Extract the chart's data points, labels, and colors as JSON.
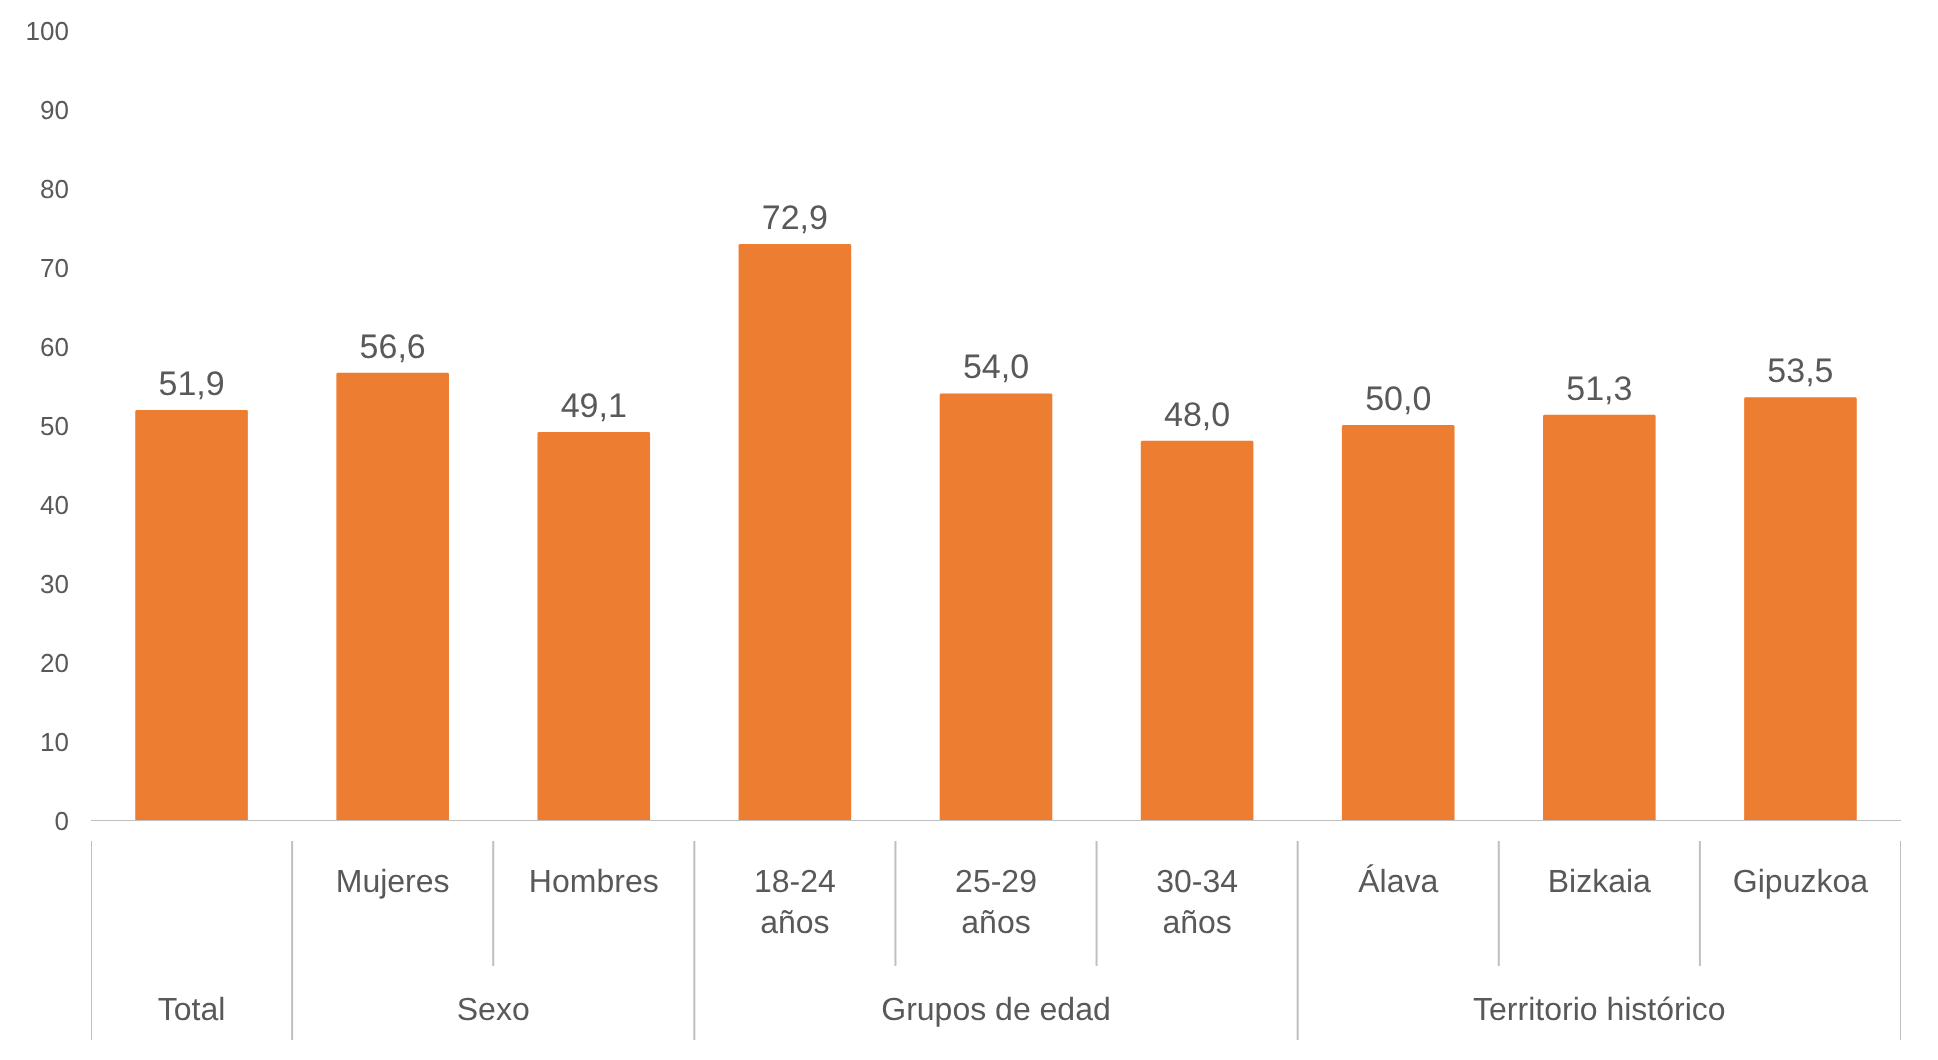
{
  "chart_data": {
    "type": "bar",
    "categories": [
      null,
      "Mujeres",
      "Hombres",
      "18-24 años",
      "25-29 años",
      "30-34 años",
      "Álava",
      "Bizkaia",
      "Gipuzkoa"
    ],
    "values": [
      51.9,
      56.6,
      49.1,
      72.9,
      54.0,
      48.0,
      50.0,
      51.3,
      53.5
    ],
    "value_labels": [
      "51,9",
      "56,6",
      "49,1",
      "72,9",
      "54,0",
      "48,0",
      "50,0",
      "51,3",
      "53,5"
    ],
    "color": "#ed7d31",
    "ylim": [
      0,
      100
    ],
    "yticks": [
      0,
      10,
      20,
      30,
      40,
      50,
      60,
      70,
      80,
      90,
      100
    ],
    "grid": false,
    "annotations": [
      "Total",
      "Sexo",
      "Grupos de edad",
      "Territorio histórico"
    ]
  }
}
